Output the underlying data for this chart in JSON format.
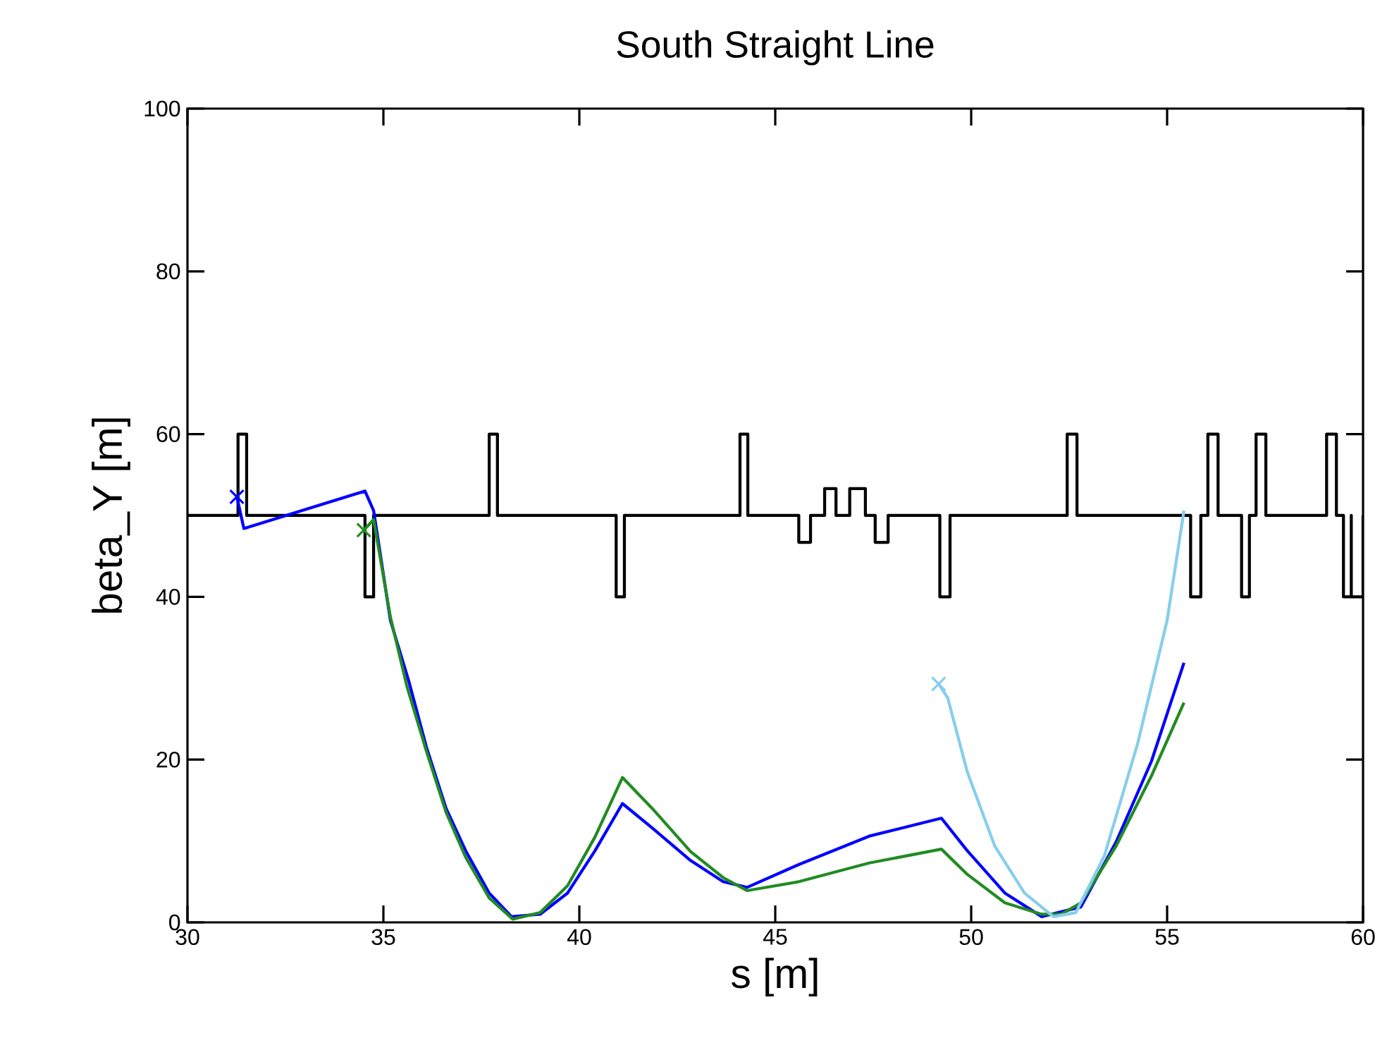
{
  "chart_data": {
    "type": "line",
    "title": "South Straight Line",
    "xlabel": "s [m]",
    "ylabel": "beta_Y [m]",
    "xlim": [
      30,
      60
    ],
    "xticks": [
      30,
      35,
      40,
      45,
      50,
      55,
      60
    ],
    "ylim": [
      0,
      100
    ],
    "yticks": [
      0,
      20,
      40,
      60,
      80,
      100
    ],
    "series": [
      {
        "color": "#000000",
        "x": [
          30,
          31.29,
          31.29,
          31.51,
          31.51,
          34.53,
          34.53,
          34.75,
          34.75,
          37.7,
          37.7,
          37.91,
          37.91,
          40.94,
          40.94,
          41.15,
          41.15,
          44.1,
          44.1,
          44.3,
          44.3,
          45.6,
          45.6,
          45.9,
          45.9,
          46.26,
          46.26,
          46.55,
          46.55,
          46.9,
          46.9,
          47.3,
          47.3,
          47.55,
          47.55,
          47.88,
          47.88,
          49.2,
          49.2,
          49.46,
          49.46,
          52.45,
          52.45,
          52.7,
          52.7,
          55.6,
          55.6,
          55.86,
          55.86,
          56.04,
          56.04,
          56.3,
          56.3,
          56.9,
          56.9,
          57.1,
          57.1,
          57.27,
          57.27,
          57.52,
          57.52,
          59.07,
          59.07,
          59.32,
          59.32,
          59.5,
          59.5,
          59.7,
          59.7,
          59.7,
          59.7,
          60,
          60
        ],
        "values": [
          50,
          50,
          60,
          60,
          50,
          50,
          40,
          40,
          50,
          50,
          60,
          60,
          50,
          50,
          40,
          40,
          50,
          50,
          60,
          60,
          50,
          50,
          46.7,
          46.7,
          50,
          50,
          53.3,
          53.3,
          50,
          50,
          53.3,
          53.3,
          50,
          50,
          46.7,
          46.7,
          50,
          50,
          40,
          40,
          50,
          50,
          60,
          60,
          50,
          50,
          40,
          40,
          50,
          50,
          60,
          60,
          50,
          50,
          40,
          40,
          50,
          50,
          60,
          60,
          50,
          50,
          60,
          60,
          50,
          50,
          40,
          40,
          50,
          40,
          40,
          40,
          50
        ]
      },
      {
        "color": "#0000ff",
        "x": [
          31.26,
          31.44,
          34.53,
          34.75,
          35.18,
          35.65,
          36.1,
          36.6,
          37.1,
          37.7,
          38.27,
          39.0,
          39.7,
          40.4,
          41.1,
          41.86,
          42.84,
          43.67,
          44.28,
          45.6,
          47.4,
          49.24,
          49.9,
          50.86,
          51.8,
          52.8,
          53.7,
          54.6,
          55.43
        ],
        "values": [
          52.3,
          48.4,
          53.0,
          50.6,
          37.1,
          29.6,
          21.5,
          14.0,
          8.8,
          3.6,
          0.7,
          1.0,
          3.6,
          8.8,
          14.6,
          11.6,
          7.6,
          5.0,
          4.3,
          7.1,
          10.6,
          12.8,
          8.8,
          3.6,
          0.7,
          1.9,
          9.9,
          19.8,
          31.9
        ]
      },
      {
        "color": "#228b22",
        "x": [
          34.5,
          34.75,
          35.18,
          35.6,
          36.1,
          36.6,
          37.1,
          37.7,
          38.3,
          39.0,
          39.7,
          40.4,
          41.1,
          41.86,
          42.84,
          43.67,
          44.28,
          45.6,
          47.4,
          49.24,
          49.9,
          50.86,
          51.8,
          52.3,
          52.8,
          53.7,
          54.6,
          55.43
        ],
        "values": [
          48.2,
          49.5,
          37.5,
          29.0,
          21.0,
          13.5,
          8.0,
          3.0,
          0.4,
          1.2,
          4.5,
          10.5,
          17.8,
          14.0,
          8.7,
          5.5,
          3.9,
          5.0,
          7.3,
          9.0,
          5.9,
          2.4,
          1.0,
          1.0,
          2.4,
          9.4,
          18.0,
          27.0
        ]
      },
      {
        "color": "#87ceeb",
        "x": [
          49.17,
          49.4,
          49.9,
          50.6,
          51.36,
          52.1,
          52.67,
          53.4,
          54.25,
          55.0,
          55.43
        ],
        "values": [
          29.3,
          27.6,
          18.5,
          9.4,
          3.6,
          0.7,
          1.2,
          8.2,
          22.0,
          37.1,
          50.6
        ]
      },
      {
        "type": "scatter",
        "marker": "cross",
        "color": "#0000ff",
        "x": [
          31.26
        ],
        "values": [
          52.3
        ]
      },
      {
        "type": "scatter",
        "marker": "cross",
        "color": "#228b22",
        "x": [
          34.5
        ],
        "values": [
          48.2
        ]
      },
      {
        "type": "scatter",
        "marker": "cross",
        "color": "#87ceeb",
        "x": [
          49.17
        ],
        "values": [
          29.3
        ]
      }
    ]
  }
}
